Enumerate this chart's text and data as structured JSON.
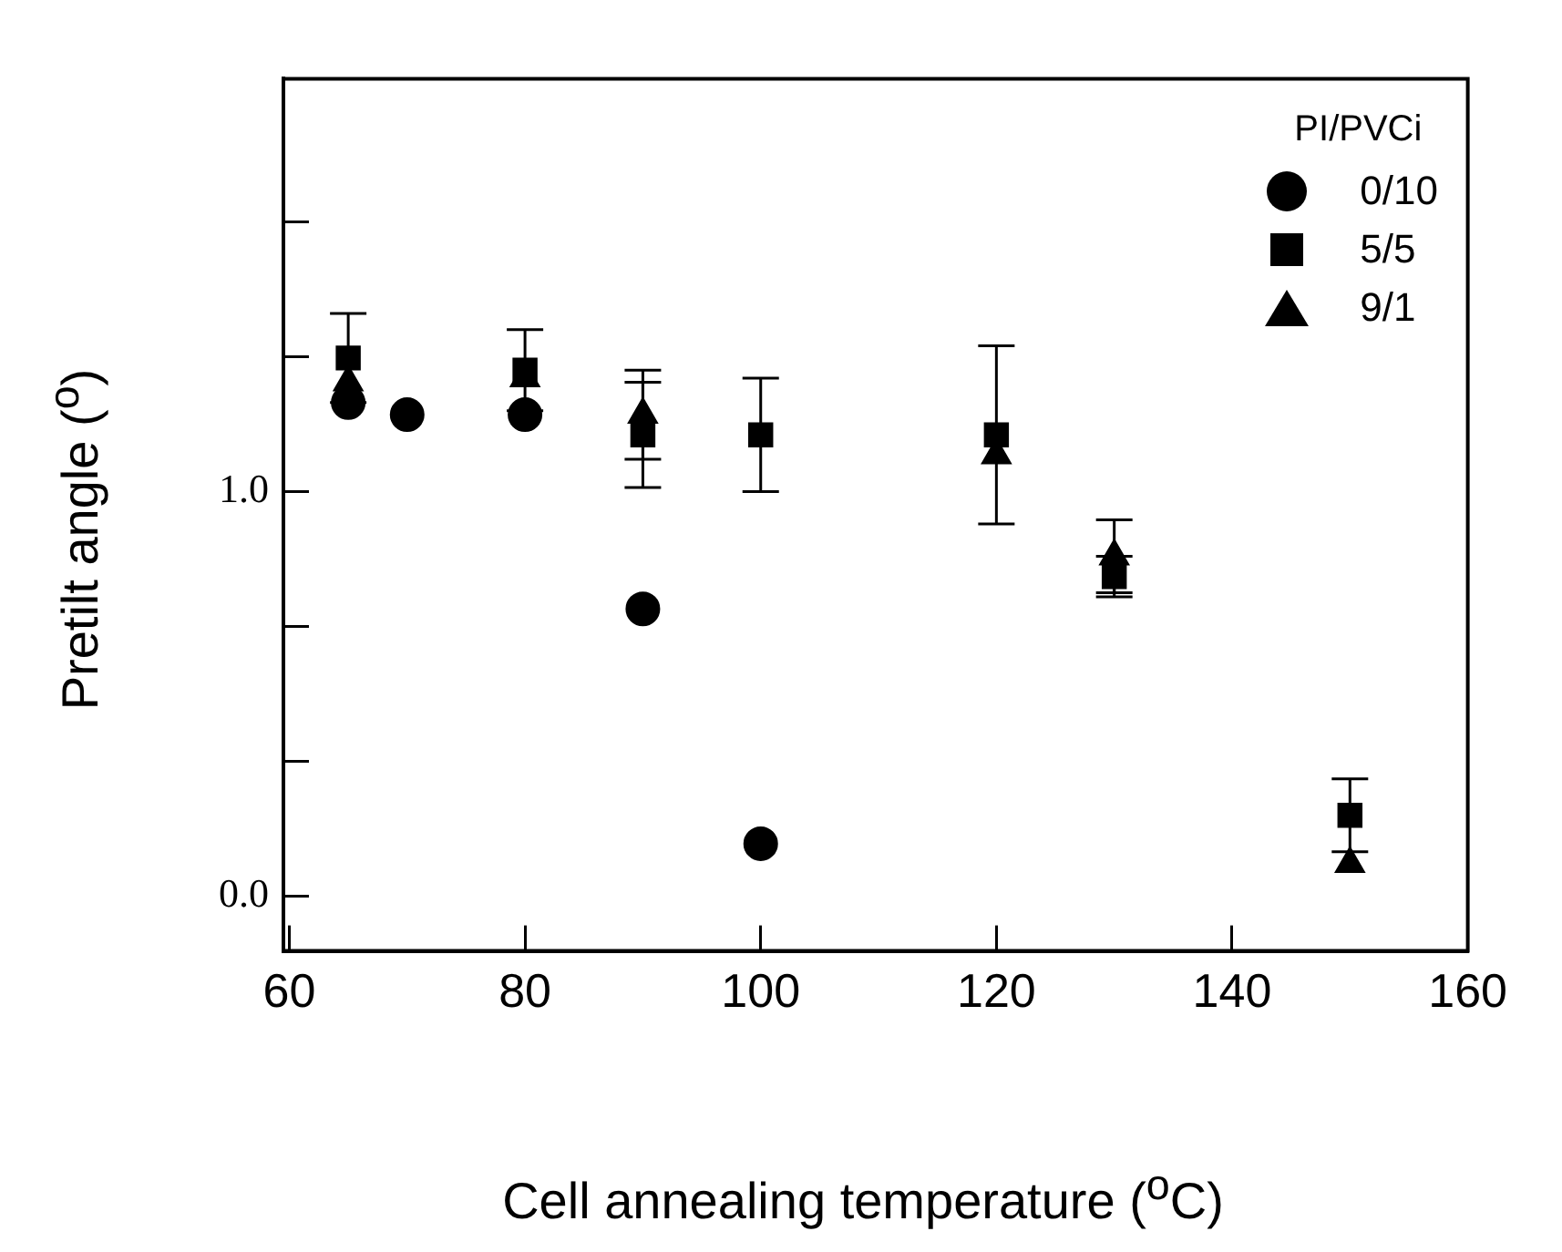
{
  "chart_data": {
    "type": "scatter",
    "xlabel": "Cell annealing temperature ($^{o}$C)",
    "ylabel": "Pretilt angle ($^{o}$)",
    "legend_title": "PI/PVCi",
    "legend": "top right",
    "grid": false,
    "xlim": [
      59.5,
      160
    ],
    "xticks": [
      60,
      80,
      100,
      120,
      140,
      160
    ],
    "ylim": [
      -0.135,
      2.02
    ],
    "yticks": [
      {
        "value": 0,
        "label": "0.0"
      },
      {
        "value": 0.333,
        "label": null
      },
      {
        "value": 0.667,
        "label": null
      },
      {
        "value": 1,
        "label": "1.0"
      },
      {
        "value": 1.333,
        "label": null
      },
      {
        "value": 1.667,
        "label": null
      }
    ],
    "series": [
      {
        "name": "0/10",
        "color": "#000000",
        "marker": "circle",
        "x": [
          65,
          70,
          80,
          90,
          100
        ],
        "values": [
          1.22,
          1.19,
          1.19,
          0.71,
          0.13
        ]
      },
      {
        "name": "5/5",
        "color": "#000000",
        "marker": "square",
        "x": [
          65,
          80,
          90,
          100,
          120,
          130,
          150
        ],
        "values": [
          1.33,
          1.3,
          1.14,
          1.14,
          1.14,
          0.79,
          0.2
        ],
        "errors": [
          0.11,
          0.1,
          0.13,
          0.14,
          0.22,
          0.05,
          0.09
        ]
      },
      {
        "name": "9/1",
        "color": "#000000",
        "marker": "triangle",
        "x": [
          65,
          80,
          90,
          100,
          120,
          130,
          150
        ],
        "values": [
          1.27,
          1.28,
          1.19,
          null,
          1.09,
          0.84,
          0.08
        ],
        "errors": [
          null,
          null,
          0.11,
          null,
          null,
          0.09,
          null
        ]
      }
    ]
  }
}
